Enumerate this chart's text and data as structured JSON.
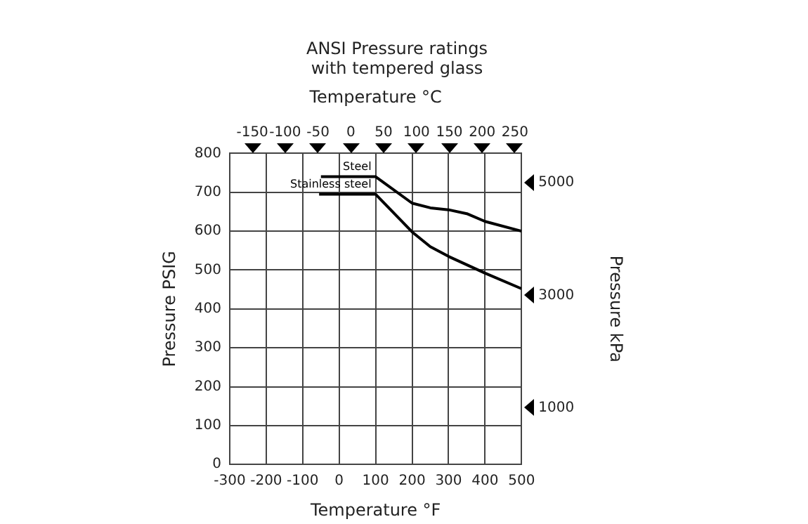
{
  "chart_data": {
    "type": "line",
    "title": "ANSI Pressure ratings\nwith tempered glass",
    "xlabel": "Temperature °F",
    "x2label": "Temperature °C",
    "ylabel": "Pressure PSIG",
    "y2label": "Pressure kPa",
    "xlim": [
      -300,
      500
    ],
    "xticks": [
      -300,
      -200,
      -100,
      0,
      100,
      200,
      300,
      400,
      500
    ],
    "x2lim": [
      -184.4,
      260
    ],
    "x2ticks": [
      -150,
      -100,
      -50,
      0,
      50,
      100,
      150,
      200,
      250
    ],
    "ylim": [
      0,
      800
    ],
    "yticks": [
      0,
      100,
      200,
      300,
      400,
      500,
      600,
      700,
      800
    ],
    "y2lim": [
      0,
      5516
    ],
    "y2ticks": [
      1000,
      3000,
      5000
    ],
    "grid": true,
    "marker": "none",
    "line_style": "solid",
    "series": [
      {
        "name": "Steel",
        "color": "#000000",
        "x": [
          -50,
          100,
          200,
          250,
          300,
          350,
          400,
          500
        ],
        "values": [
          740,
          740,
          672,
          660,
          655,
          645,
          625,
          600
        ]
      },
      {
        "name": "Stainless steel",
        "color": "#000000",
        "x": [
          -55,
          100,
          200,
          250,
          300,
          400,
          500
        ],
        "values": [
          695,
          695,
          598,
          560,
          535,
          492,
          452
        ]
      }
    ]
  }
}
